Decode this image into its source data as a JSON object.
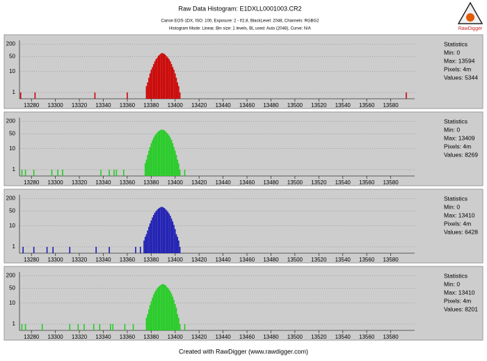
{
  "header": {
    "title": "Raw Data Histogram: E1DXLL0001003.CR2",
    "subtitle": "Canon EOS-1DX, ISO: 100, Exposure: 2 - f/2.8, BlackLevel: 2048, Channels: RGBG2",
    "mode": "Histogram Mode: Linear, Bin size: 1 levels, BL used: Auto (2048), Curve: N/A",
    "logo": "RawDigger"
  },
  "footer": "Created with RawDigger (www.rawdigger.com)",
  "chart_data": [
    {
      "type": "bar",
      "color": "#cc0000",
      "log_y": true,
      "grid": true,
      "xlim": [
        13270,
        13600
      ],
      "xticks": [
        13280,
        13300,
        13320,
        13340,
        13360,
        13380,
        13400,
        13420,
        13440,
        13460,
        13480,
        13500,
        13520,
        13540,
        13560,
        13580
      ],
      "ylim": [
        0.5,
        300
      ],
      "yticks": [
        1,
        10,
        50,
        200
      ],
      "x": [
        13271,
        13283,
        13333,
        13360,
        13376,
        13377,
        13378,
        13379,
        13380,
        13381,
        13382,
        13383,
        13384,
        13385,
        13386,
        13387,
        13388,
        13389,
        13390,
        13391,
        13392,
        13393,
        13394,
        13395,
        13396,
        13397,
        13398,
        13399,
        13400,
        13401,
        13402,
        13403,
        13404,
        13593
      ],
      "values": [
        1,
        1,
        1,
        1,
        2,
        3,
        5,
        8,
        12,
        16,
        22,
        30,
        38,
        45,
        55,
        62,
        70,
        75,
        72,
        68,
        60,
        52,
        45,
        38,
        30,
        22,
        16,
        12,
        8,
        5,
        3,
        2,
        1,
        1
      ],
      "stats": [
        "Statistics",
        "Min: 0",
        "Max: 13594",
        "Pixels: 4m",
        "Values: 5344"
      ]
    },
    {
      "type": "bar",
      "color": "#22cc22",
      "log_y": true,
      "grid": true,
      "xlim": [
        13270,
        13600
      ],
      "xticks": [
        13280,
        13300,
        13320,
        13340,
        13360,
        13380,
        13400,
        13420,
        13440,
        13460,
        13480,
        13500,
        13520,
        13540,
        13560,
        13580
      ],
      "ylim": [
        0.5,
        300
      ],
      "yticks": [
        1,
        10,
        50,
        200
      ],
      "x": [
        13272,
        13275,
        13282,
        13297,
        13302,
        13306,
        13338,
        13345,
        13349,
        13351,
        13357,
        13375,
        13376,
        13377,
        13378,
        13379,
        13380,
        13381,
        13382,
        13383,
        13384,
        13385,
        13386,
        13387,
        13388,
        13389,
        13390,
        13391,
        13392,
        13393,
        13394,
        13395,
        13396,
        13397,
        13398,
        13399,
        13400,
        13401,
        13402,
        13403,
        13404,
        13408
      ],
      "values": [
        1,
        1,
        1,
        1,
        1,
        1,
        1,
        1,
        1,
        1,
        1,
        2,
        3,
        5,
        8,
        12,
        18,
        25,
        33,
        42,
        50,
        58,
        66,
        72,
        78,
        80,
        78,
        74,
        66,
        58,
        50,
        42,
        34,
        26,
        18,
        12,
        8,
        5,
        3,
        2,
        1,
        1
      ],
      "stats": [
        "Statistics",
        "Min: 0",
        "Max: 13409",
        "Pixels: 4m",
        "Values: 8269"
      ]
    },
    {
      "type": "bar",
      "color": "#1a1ab4",
      "log_y": true,
      "grid": true,
      "xlim": [
        13270,
        13600
      ],
      "xticks": [
        13280,
        13300,
        13320,
        13340,
        13360,
        13380,
        13400,
        13420,
        13440,
        13460,
        13480,
        13500,
        13520,
        13540,
        13560,
        13580
      ],
      "ylim": [
        0.5,
        300
      ],
      "yticks": [
        1,
        10,
        50,
        200
      ],
      "x": [
        13273,
        13282,
        13293,
        13298,
        13312,
        13334,
        13345,
        13367,
        13371,
        13374,
        13375,
        13376,
        13377,
        13378,
        13379,
        13380,
        13381,
        13382,
        13383,
        13384,
        13385,
        13386,
        13387,
        13388,
        13389,
        13390,
        13391,
        13392,
        13393,
        13394,
        13395,
        13396,
        13397,
        13398,
        13399,
        13400,
        13401,
        13402,
        13403,
        13404
      ],
      "values": [
        1,
        1,
        1,
        1,
        1,
        1,
        1,
        1,
        1,
        2,
        3,
        4,
        6,
        9,
        13,
        18,
        25,
        33,
        42,
        50,
        58,
        66,
        72,
        78,
        80,
        76,
        70,
        62,
        54,
        46,
        38,
        30,
        22,
        16,
        11,
        7,
        4,
        3,
        2,
        1
      ],
      "stats": [
        "Statistics",
        "Min: 0",
        "Max: 13410",
        "Pixels: 4m",
        "Values: 6428"
      ]
    },
    {
      "type": "bar",
      "color": "#22cc22",
      "log_y": true,
      "grid": true,
      "xlim": [
        13270,
        13600
      ],
      "xticks": [
        13280,
        13300,
        13320,
        13340,
        13360,
        13380,
        13400,
        13420,
        13440,
        13460,
        13480,
        13500,
        13520,
        13540,
        13560,
        13580
      ],
      "ylim": [
        0.5,
        300
      ],
      "yticks": [
        1,
        10,
        50,
        200
      ],
      "x": [
        13272,
        13275,
        13289,
        13312,
        13319,
        13324,
        13332,
        13337,
        13346,
        13348,
        13358,
        13365,
        13376,
        13377,
        13378,
        13379,
        13380,
        13381,
        13382,
        13383,
        13384,
        13385,
        13386,
        13387,
        13388,
        13389,
        13390,
        13391,
        13392,
        13393,
        13394,
        13395,
        13396,
        13397,
        13398,
        13399,
        13400,
        13401,
        13402,
        13403,
        13404,
        13408
      ],
      "values": [
        1,
        1,
        1,
        1,
        1,
        1,
        1,
        1,
        1,
        1,
        1,
        1,
        2,
        3,
        5,
        8,
        12,
        18,
        25,
        33,
        42,
        50,
        58,
        66,
        72,
        78,
        80,
        76,
        70,
        60,
        52,
        44,
        36,
        28,
        20,
        14,
        9,
        6,
        3,
        2,
        1,
        1
      ],
      "stats": [
        "Statistics",
        "Min: 0",
        "Max: 13410",
        "Pixels: 4m",
        "Values: 8201"
      ]
    }
  ]
}
